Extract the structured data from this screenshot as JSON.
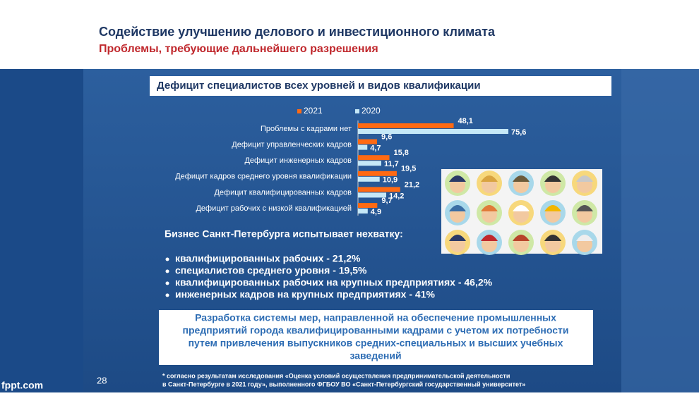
{
  "slide": {
    "title": "Содействие улучшению делового и инвестиционного климата",
    "subtitle": "Проблемы, требующие дальнейшего разрешения",
    "page_number": "28",
    "watermark": "fppt.com"
  },
  "chart_data": {
    "type": "bar",
    "orientation": "horizontal",
    "title": "Дефицит специалистов всех уровней и видов квалификации",
    "categories": [
      "Проблемы с кадрами нет",
      "Дефицит управленческих кадров",
      "Дефицит инженерных кадров",
      "Дефицит кадров среднего уровня квалификации",
      "Дефицит квалифицированных кадров",
      "Дефицит рабочих с низкой квалификацией"
    ],
    "series": [
      {
        "name": "2021",
        "color": "#ff6a13",
        "values": [
          48.1,
          9.6,
          15.8,
          19.5,
          21.2,
          9.7
        ],
        "value_labels": [
          "48,1",
          "9,6",
          "15,8",
          "19,5",
          "21,2",
          "9,7"
        ]
      },
      {
        "name": "2020",
        "color": "#c5e8f7",
        "values": [
          75.6,
          4.7,
          11.7,
          10.9,
          14.2,
          4.9
        ],
        "value_labels": [
          "75,6",
          "4,7",
          "11,7",
          "10,9",
          "14,2",
          "4,9"
        ]
      }
    ]
  },
  "summary": {
    "heading": "Бизнес Санкт-Петербурга испытывает нехватку:",
    "items": [
      "квалифицированных рабочих  - 21,2%",
      "специалистов среднего уровня  - 19,5%",
      "квалифицированных рабочих на крупных предприятиях - 46,2%",
      "инженерных кадров на крупных предприятиях - 41%"
    ]
  },
  "callout": {
    "lines": [
      "Разработка системы мер, направленной на обеспечение промышленных",
      "предприятий города квалифицированными кадрами с учетом их потребности",
      "путем привлечения выпускников средних-специальных и высших учебных",
      "заведений"
    ]
  },
  "footnote": {
    "lines": [
      "*  согласно  результатам  исследования  «Оценка  условий  осуществления  предпринимательской  деятельности",
      "в Санкт-Петербурге в 2021 году», выполненного ФГБОУ ВО «Санкт-Петербургский государственный университет»"
    ]
  }
}
